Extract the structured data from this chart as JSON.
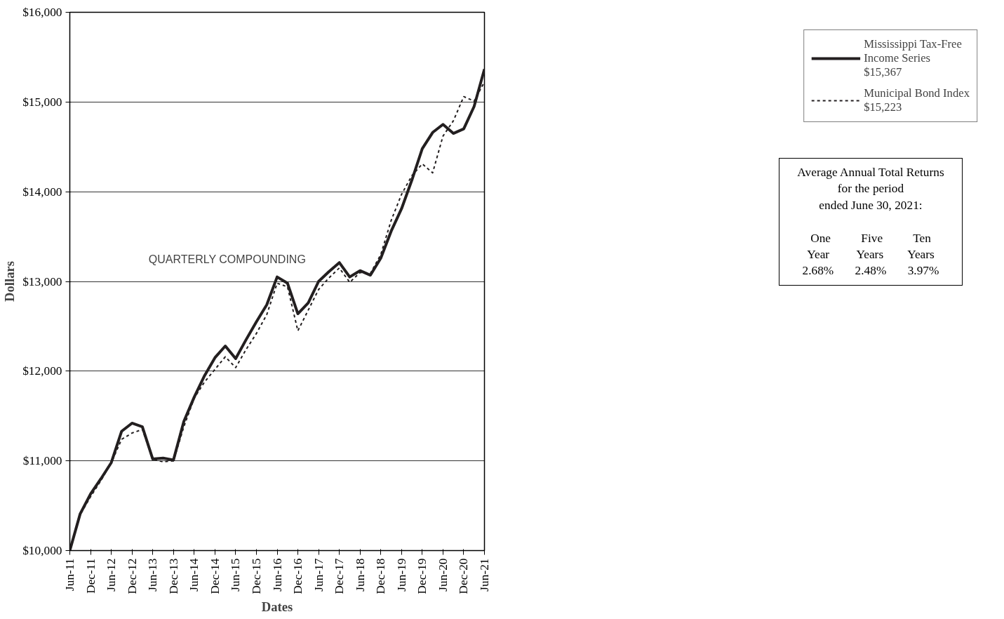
{
  "chart_data": {
    "type": "line",
    "xlabel": "Dates",
    "ylabel": "Dollars",
    "categories": [
      "Jun-11",
      null,
      "Dec-11",
      null,
      "Jun-12",
      null,
      "Dec-12",
      null,
      "Jun-13",
      null,
      "Dec-13",
      null,
      "Jun-14",
      null,
      "Dec-14",
      null,
      "Jun-15",
      null,
      "Dec-15",
      null,
      "Jun-16",
      null,
      "Dec-16",
      null,
      "Jun-17",
      null,
      "Dec-17",
      null,
      "Jun-18",
      null,
      "Dec-18",
      null,
      "Jun-19",
      null,
      "Dec-19",
      null,
      "Jun-20",
      null,
      "Dec-20",
      null,
      "Jun-21"
    ],
    "series": [
      {
        "name": "Mississippi Tax-Free Income Series $15,367",
        "color": "#231f20",
        "line_style": "solid",
        "values": [
          10000,
          10410,
          10630,
          10800,
          10980,
          11330,
          11420,
          11380,
          11020,
          11030,
          11010,
          11440,
          11710,
          11950,
          12150,
          12280,
          12140,
          12350,
          12550,
          12740,
          13050,
          12980,
          12640,
          12760,
          13000,
          13110,
          13210,
          13050,
          13120,
          13070,
          13260,
          13560,
          13810,
          14130,
          14480,
          14660,
          14750,
          14650,
          14700,
          14950,
          15367
        ]
      },
      {
        "name": "Municipal Bond Index $15,223",
        "color": "#231f20",
        "line_style": "dotted",
        "values": [
          10000,
          10400,
          10600,
          10780,
          10980,
          11240,
          11310,
          11350,
          11020,
          10990,
          11000,
          11380,
          11700,
          11880,
          12020,
          12160,
          12040,
          12240,
          12420,
          12630,
          12980,
          12940,
          12450,
          12680,
          12910,
          13040,
          13150,
          12990,
          13100,
          13090,
          13300,
          13680,
          13970,
          14180,
          14310,
          14210,
          14620,
          14790,
          15060,
          15010,
          15223
        ]
      }
    ],
    "ylim": [
      10000,
      16000
    ],
    "yticks": [
      {
        "value": 10000,
        "label": "$10,000"
      },
      {
        "value": 11000,
        "label": "$11,000"
      },
      {
        "value": 12000,
        "label": "$12,000"
      },
      {
        "value": 13000,
        "label": "$13,000"
      },
      {
        "value": 14000,
        "label": "$14,000"
      },
      {
        "value": 15000,
        "label": "$15,000"
      },
      {
        "value": 16000,
        "label": "$16,000"
      }
    ],
    "grid": "y",
    "legend": "top right",
    "marker": "none",
    "annotations": [
      "QUARTERLY COMPOUNDING",
      "Average Annual Total Returns\nfor the period\nended June 30, 2021:\n\nOne          Five          Ten\nYear         Years        Years\n2.68%       2.48%       3.97%"
    ]
  }
}
